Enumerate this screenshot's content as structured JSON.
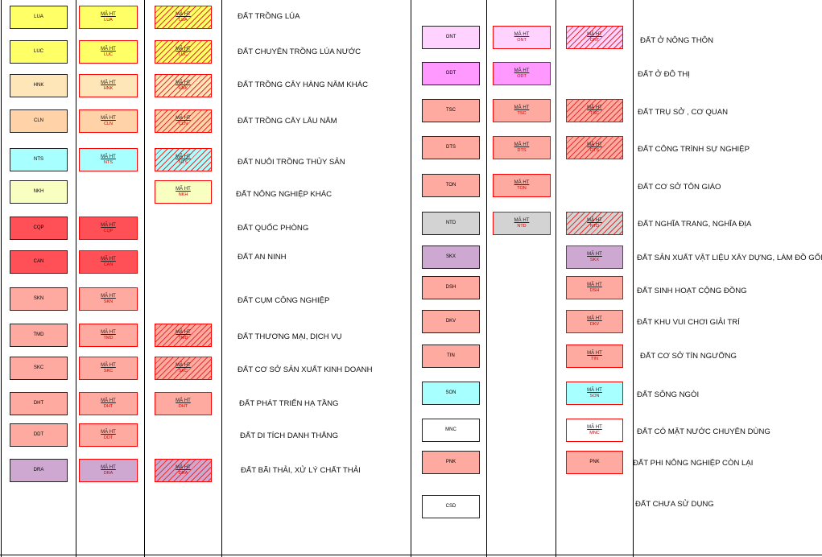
{
  "ma_ht_label": "MÃ HT",
  "colors": {
    "LUA": "#ffff66",
    "LUC": "#ffff66",
    "HNK": "#ffe6b8",
    "CLN": "#ffd2a8",
    "NTS": "#a8ffff",
    "NKH": "#f8ffc0",
    "CQP": "#ff5058",
    "CAN": "#ff5058",
    "SKN": "#ffaaa0",
    "TMD": "#ffaaa0",
    "SKC": "#ffaaa0",
    "DHT": "#ffaaa0",
    "DDT": "#ffaaa0",
    "DRA": "#cfa8d2",
    "ONT": "#ffd2ff",
    "ODT": "#ff98ff",
    "TSC": "#ffaaa0",
    "DTS": "#ffaaa0",
    "TON": "#ffaaa0",
    "NTD": "#d3d3d3",
    "SKX": "#cda8d0",
    "DSH": "#ffaaa0",
    "DKV": "#ffaaa0",
    "TIN": "#ffaaa0",
    "SON": "#a8ffff",
    "MNC": "#ffffff",
    "PNK": "#ffaaa0",
    "CSD": "#ffffff"
  },
  "left_rows": [
    {
      "code": "LUA",
      "ma": "LUA",
      "hatch": "LUA",
      "label": "ĐẤT TRỒNG LÚA"
    },
    {
      "code": "LUC",
      "ma": "LUC",
      "hatch": "LUC",
      "label": "ĐẤT CHUYÊN TRỒNG LÚA NƯỚC"
    },
    {
      "code": "HNK",
      "ma": "HNK",
      "hatch": "HNK",
      "label": "ĐẤT TRỒNG CÂY HÀNG NĂM KHÁC"
    },
    {
      "code": "CLN",
      "ma": "CLN",
      "hatch": "CLN",
      "label": "ĐẤT TRỒNG CÂY LÂU NĂM"
    },
    {
      "code": "NTS",
      "ma": "NTS",
      "hatch": "NTS",
      "label": "ĐẤT NUÔI TRỒNG THỦY SẢN"
    },
    {
      "code": "NKH",
      "ma": "",
      "hatch": "NKH",
      "label": "ĐẤT NÔNG NGHIỆP KHÁC"
    },
    {
      "code": "CQP",
      "ma": "CQP",
      "hatch": "",
      "label": "ĐẤT QUỐC PHÒNG"
    },
    {
      "code": "CAN",
      "ma": "CAN",
      "hatch": "",
      "label": "ĐẤT AN NINH"
    },
    {
      "code": "SKN",
      "ma": "SKN",
      "hatch": "",
      "label": "ĐẤT CỤM CÔNG NGHIỆP"
    },
    {
      "code": "TMD",
      "ma": "TMD",
      "hatch": "TMD",
      "label": "ĐẤT THƯƠNG MẠI, DỊCH VỤ"
    },
    {
      "code": "SKC",
      "ma": "SKC",
      "hatch": "SKC",
      "label": "ĐẤT CƠ SỞ SẢN XUẤT KINH DOANH"
    },
    {
      "code": "DHT",
      "ma": "DHT",
      "hatch": "DHT",
      "label": "ĐẤT PHÁT TRIỂN HẠ TẦNG"
    },
    {
      "code": "DDT",
      "ma": "DDT",
      "hatch": "",
      "label": "ĐẤT DI TÍCH DANH THẮNG"
    },
    {
      "code": "DRA",
      "ma": "DRA",
      "hatch": "DRA",
      "label": "ĐẤT BÃI THẢI, XỬ LÝ CHẤT THẢI"
    }
  ],
  "right_rows": [
    {
      "code": "ONT",
      "ma": "ONT",
      "hatch": "ONT",
      "label": "ĐẤT Ở NÔNG THÔN"
    },
    {
      "code": "ODT",
      "ma": "ODT",
      "hatch": "",
      "label": "ĐẤT Ở ĐÔ THỊ"
    },
    {
      "code": "TSC",
      "ma": "TSC",
      "hatch": "TSC",
      "label": "ĐẤT TRỤ SỞ , CƠ QUAN"
    },
    {
      "code": "DTS",
      "ma": "DTS",
      "hatch": "DTS",
      "label": "ĐẤT CÔNG TRÌNH SỰ NGHIỆP"
    },
    {
      "code": "TON",
      "ma": "TON",
      "hatch": "",
      "label": "ĐẤT CƠ SỞ TÔN GIÁO"
    },
    {
      "code": "NTD",
      "ma": "NTD",
      "hatch": "NTD",
      "label": "ĐẤT NGHĨA TRANG, NGHĨA ĐỊA"
    },
    {
      "code": "SKX",
      "ma": "",
      "hatch": "SKX",
      "label": "ĐẤT SẢN XUẤT VẬT LIỆU XÂY DỰNG, LÀM ĐỒ GỐM"
    },
    {
      "code": "DSH",
      "ma": "",
      "hatch": "DSH",
      "label": "ĐẤT SINH HOẠT CỘNG ĐỒNG"
    },
    {
      "code": "DKV",
      "ma": "",
      "hatch": "DKV",
      "label": "ĐẤT KHU VUI CHƠI GIẢI TRÍ"
    },
    {
      "code": "TIN",
      "ma": "",
      "hatch": "TIN",
      "label": "ĐẤT CƠ SỞ TÍN NGƯỠNG"
    },
    {
      "code": "SON",
      "ma": "",
      "hatch": "SON",
      "label": "ĐẤT SÔNG NGÒI"
    },
    {
      "code": "MNC",
      "ma": "",
      "hatch": "MNC",
      "label": "ĐẤT CÓ MẶT NƯỚC CHUYÊN DÙNG"
    },
    {
      "code": "PNK",
      "ma": "",
      "hatch": "PNK",
      "label": "ĐẤT PHI NÔNG NGHIỆP CÒN LẠI"
    },
    {
      "code": "CSD",
      "ma": "",
      "hatch": "",
      "label": "ĐẤT CHƯA SỬ DỤNG"
    }
  ]
}
